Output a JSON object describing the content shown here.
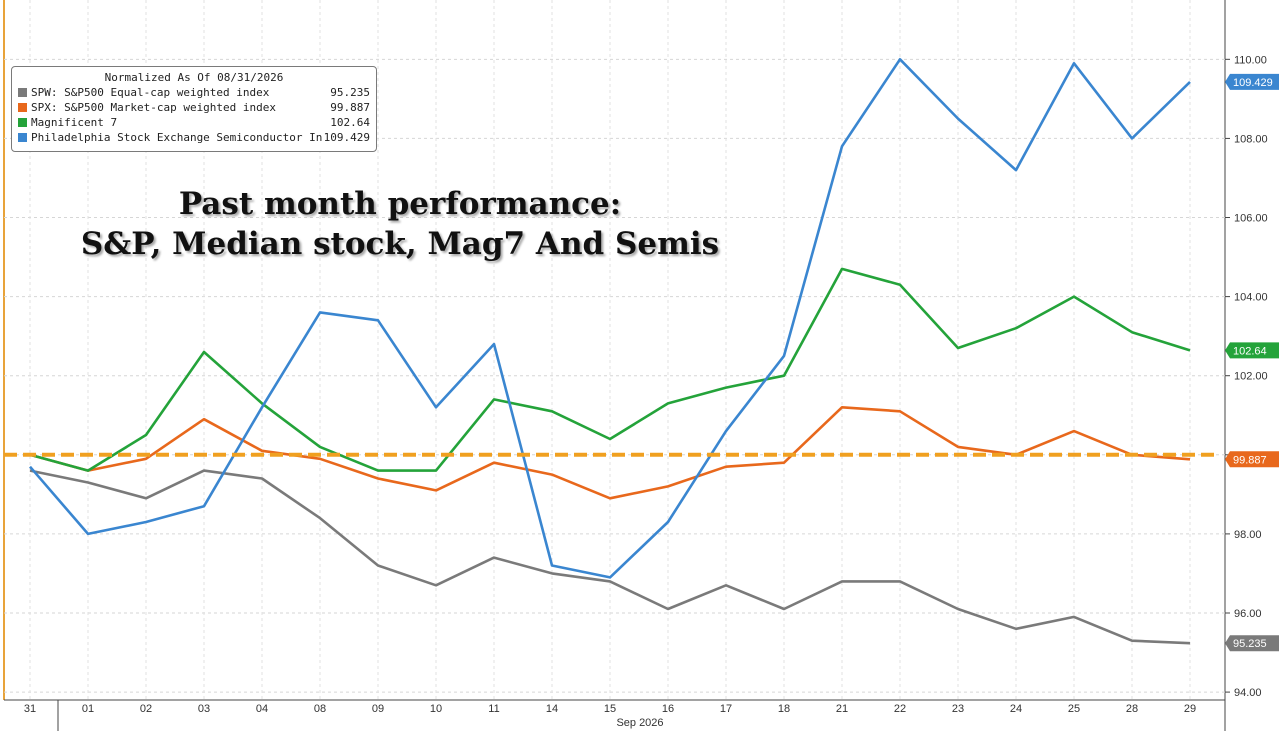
{
  "chart_data": {
    "type": "line",
    "x": [
      "31",
      "01",
      "02",
      "03",
      "04",
      "08",
      "09",
      "10",
      "11",
      "14",
      "15",
      "16",
      "17",
      "18",
      "21",
      "22",
      "23",
      "24",
      "25",
      "28",
      "29"
    ],
    "x_month_label": "Sep 2026",
    "ylim": [
      93.8,
      111.5
    ],
    "y_ticks": [
      "94.00",
      "96.00",
      "98.00",
      "100.00",
      "102.00",
      "104.00",
      "106.00",
      "108.00",
      "110.00"
    ],
    "legend_title": "Normalized As Of 08/31/2026",
    "reference_line": 100,
    "annotation": [
      "Past month performance:",
      "S&P, Median stock, Mag7 And Semis"
    ],
    "series": [
      {
        "name": "SPW: S&P500 Equal-cap weighted index",
        "last": "95.235",
        "color": "#7a7a7a",
        "values": [
          99.6,
          99.3,
          98.9,
          99.6,
          99.4,
          98.4,
          97.2,
          96.7,
          97.4,
          97.0,
          96.8,
          96.1,
          96.7,
          96.1,
          96.8,
          96.8,
          96.1,
          95.6,
          95.9,
          95.3,
          95.235
        ]
      },
      {
        "name": "SPX: S&P500 Market-cap weighted index",
        "last": "99.887",
        "color": "#e8681c",
        "values": [
          100.0,
          99.6,
          99.9,
          100.9,
          100.1,
          99.9,
          99.4,
          99.1,
          99.8,
          99.5,
          98.9,
          99.2,
          99.7,
          99.8,
          101.2,
          101.1,
          100.2,
          100.0,
          100.6,
          100.0,
          99.887
        ]
      },
      {
        "name": "Magnificent 7",
        "last": "102.64",
        "color": "#24a33a",
        "values": [
          100.0,
          99.6,
          100.5,
          102.6,
          101.3,
          100.2,
          99.6,
          99.6,
          101.4,
          101.1,
          100.4,
          101.3,
          101.7,
          102.0,
          104.7,
          104.3,
          102.7,
          103.2,
          104.0,
          103.1,
          102.64
        ]
      },
      {
        "name": "Philadelphia Stock Exchange Semiconductor Index",
        "last": "109.429",
        "color": "#3a86d0",
        "values": [
          99.7,
          98.0,
          98.3,
          98.7,
          101.2,
          103.6,
          103.4,
          101.2,
          102.8,
          97.2,
          96.9,
          98.3,
          100.6,
          102.5,
          107.8,
          110.0,
          108.5,
          107.2,
          109.9,
          108.0,
          109.429
        ]
      }
    ]
  }
}
